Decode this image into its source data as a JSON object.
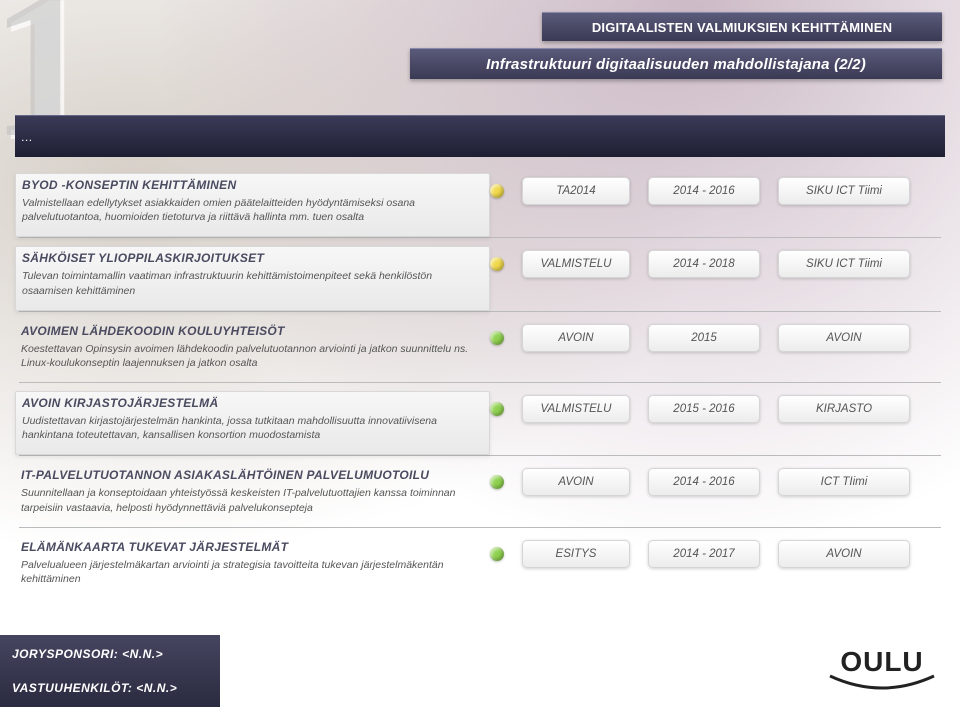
{
  "header": {
    "bar1": "DIGITAALISTEN VALMIUKSIEN KEHITTÄMINEN",
    "bar2": "Infrastruktuuri digitaalisuuden mahdollistajana (2/2)",
    "ellipsis": "…"
  },
  "big_number": "1",
  "status_colors": {
    "green": "#8fd14f",
    "yellow": "#f1d94b"
  },
  "items": [
    {
      "title": "BYOD -KONSEPTIN KEHITTÄMINEN",
      "desc": "Valmistellaan edellytykset asiakkaiden omien päätelaitteiden hyödyntämiseksi osana palvelutuotantoa, huomioiden tietoturva ja riittävä hallinta mm. tuen osalta",
      "dot": "yellow",
      "status": "TA2014",
      "years": "2014 - 2016",
      "owner": "SIKU ICT Tiimi",
      "boxed": true
    },
    {
      "title": "SÄHKÖISET YLIOPPILASKIRJOITUKSET",
      "desc": "Tulevan toimintamallin vaatiman infrastruktuurin kehittämistoimenpiteet sekä henkilöstön osaamisen kehittäminen",
      "dot": "yellow",
      "status": "VALMISTELU",
      "years": "2014 - 2018",
      "owner": "SIKU ICT Tiimi",
      "boxed": true
    },
    {
      "title": "AVOIMEN LÄHDEKOODIN KOULUYHTEISÖT",
      "desc": "Koestettavan Opinsysin avoimen lähdekoodin palvelutuotannon arviointi ja jatkon suunnittelu ns. Linux-koulukonseptin laajennuksen ja jatkon osalta",
      "dot": "green",
      "status": "AVOIN",
      "years": "2015",
      "owner": "AVOIN",
      "boxed": false
    },
    {
      "title": "AVOIN KIRJASTOJÄRJESTELMÄ",
      "desc": "Uudistettavan kirjastojärjestelmän hankinta, jossa tutkitaan mahdollisuutta innovatiivisena hankintana toteutettavan, kansallisen konsortion muodostamista",
      "dot": "green",
      "status": "VALMISTELU",
      "years": "2015 - 2016",
      "owner": "KIRJASTO",
      "boxed": true
    },
    {
      "title": "IT-PALVELUTUOTANNON ASIAKASLÄHTÖINEN PALVELUMUOTOILU",
      "desc": "Suunnitellaan ja konseptoidaan yhteistyössä keskeisten IT-palvelutuottajien kanssa toiminnan tarpeisiin vastaavia, helposti hyödynnettäviä palvelukonsepteja",
      "dot": "green",
      "status": "AVOIN",
      "years": "2014 - 2016",
      "owner": "ICT TIimi",
      "boxed": false
    },
    {
      "title": "ELÄMÄNKAARTA TUKEVAT JÄRJESTELMÄT",
      "desc": "Palvelualueen järjestelmäkartan arviointi ja strategisia tavoitteita tukevan järjestelmäkentän kehittäminen",
      "dot": "green",
      "status": "ESITYS",
      "years": "2014 - 2017",
      "owner": "AVOIN",
      "boxed": false
    }
  ],
  "footer": {
    "sponsor": "JORYSPONSORI: <N.N.>",
    "responsible": "VASTUUHENKILÖT: <N.N.>",
    "logo_text": "OULU"
  }
}
